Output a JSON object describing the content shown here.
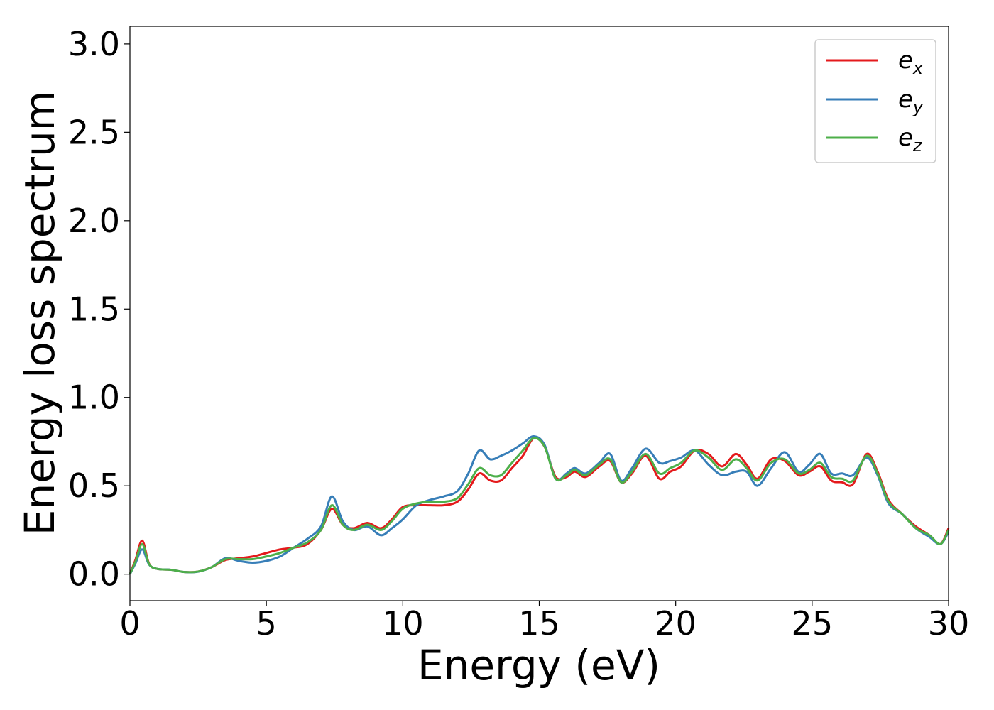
{
  "chart_data": {
    "type": "line",
    "xlabel": "Energy (eV)",
    "ylabel": "Energy loss spectrum",
    "xlim": [
      0,
      30
    ],
    "ylim": [
      -0.15,
      3.1
    ],
    "xticks": [
      0,
      5,
      10,
      15,
      20,
      25,
      30
    ],
    "yticks": [
      0.0,
      0.5,
      1.0,
      1.5,
      2.0,
      2.5,
      3.0
    ],
    "xtick_labels": [
      "0",
      "5",
      "10",
      "15",
      "20",
      "25",
      "30"
    ],
    "ytick_labels": [
      "0.0",
      "0.5",
      "1.0",
      "1.5",
      "2.0",
      "2.5",
      "3.0"
    ],
    "grid": false,
    "legend_position": "top-right",
    "x": [
      0,
      0.2,
      0.45,
      0.7,
      1.0,
      1.5,
      2.0,
      2.5,
      3.0,
      3.5,
      4.0,
      4.5,
      5.0,
      5.5,
      6.0,
      6.5,
      7.0,
      7.4,
      7.8,
      8.2,
      8.7,
      9.2,
      9.6,
      10.0,
      10.5,
      11.0,
      11.5,
      12.0,
      12.4,
      12.8,
      13.2,
      13.6,
      14.0,
      14.4,
      14.8,
      15.2,
      15.6,
      16.0,
      16.3,
      16.7,
      17.2,
      17.6,
      18.0,
      18.4,
      18.9,
      19.4,
      19.8,
      20.2,
      20.7,
      21.2,
      21.7,
      22.2,
      22.6,
      23.0,
      23.5,
      24.0,
      24.5,
      24.9,
      25.3,
      25.7,
      26.1,
      26.5,
      27.0,
      27.4,
      27.8,
      28.3,
      28.8,
      29.3,
      29.7,
      30.0
    ],
    "series": [
      {
        "name": "x",
        "color": "#e41a1c",
        "values": [
          0.0,
          0.08,
          0.19,
          0.06,
          0.03,
          0.025,
          0.012,
          0.015,
          0.04,
          0.08,
          0.09,
          0.1,
          0.12,
          0.14,
          0.15,
          0.17,
          0.25,
          0.37,
          0.28,
          0.26,
          0.29,
          0.26,
          0.31,
          0.38,
          0.39,
          0.39,
          0.39,
          0.41,
          0.48,
          0.57,
          0.53,
          0.53,
          0.6,
          0.67,
          0.77,
          0.72,
          0.55,
          0.55,
          0.58,
          0.55,
          0.61,
          0.64,
          0.52,
          0.57,
          0.67,
          0.54,
          0.58,
          0.61,
          0.7,
          0.68,
          0.61,
          0.68,
          0.62,
          0.54,
          0.65,
          0.64,
          0.56,
          0.58,
          0.61,
          0.53,
          0.52,
          0.51,
          0.68,
          0.58,
          0.42,
          0.34,
          0.27,
          0.22,
          0.17,
          0.26
        ]
      },
      {
        "name": "y",
        "color": "#377eb8",
        "values": [
          0.0,
          0.06,
          0.14,
          0.055,
          0.03,
          0.025,
          0.012,
          0.014,
          0.04,
          0.09,
          0.075,
          0.065,
          0.075,
          0.1,
          0.15,
          0.2,
          0.27,
          0.44,
          0.3,
          0.25,
          0.27,
          0.22,
          0.26,
          0.31,
          0.39,
          0.42,
          0.44,
          0.47,
          0.57,
          0.7,
          0.65,
          0.67,
          0.7,
          0.74,
          0.78,
          0.73,
          0.54,
          0.57,
          0.6,
          0.57,
          0.63,
          0.68,
          0.53,
          0.6,
          0.71,
          0.63,
          0.64,
          0.66,
          0.7,
          0.62,
          0.56,
          0.58,
          0.58,
          0.5,
          0.6,
          0.69,
          0.58,
          0.62,
          0.68,
          0.57,
          0.57,
          0.56,
          0.66,
          0.56,
          0.4,
          0.34,
          0.26,
          0.21,
          0.17,
          0.24
        ]
      },
      {
        "name": "z",
        "color": "#4daf4a",
        "values": [
          0.0,
          0.07,
          0.17,
          0.058,
          0.03,
          0.025,
          0.012,
          0.015,
          0.04,
          0.085,
          0.085,
          0.085,
          0.1,
          0.12,
          0.15,
          0.18,
          0.25,
          0.39,
          0.28,
          0.25,
          0.28,
          0.25,
          0.3,
          0.37,
          0.4,
          0.41,
          0.41,
          0.43,
          0.51,
          0.6,
          0.56,
          0.56,
          0.63,
          0.7,
          0.77,
          0.72,
          0.54,
          0.56,
          0.59,
          0.56,
          0.62,
          0.65,
          0.52,
          0.58,
          0.68,
          0.57,
          0.6,
          0.63,
          0.7,
          0.66,
          0.59,
          0.65,
          0.6,
          0.53,
          0.63,
          0.65,
          0.57,
          0.59,
          0.63,
          0.55,
          0.54,
          0.53,
          0.67,
          0.57,
          0.41,
          0.34,
          0.26,
          0.22,
          0.17,
          0.25
        ]
      }
    ]
  },
  "legend": {
    "entries": [
      {
        "base": "e",
        "sub": "x"
      },
      {
        "base": "e",
        "sub": "y"
      },
      {
        "base": "e",
        "sub": "z"
      }
    ]
  }
}
